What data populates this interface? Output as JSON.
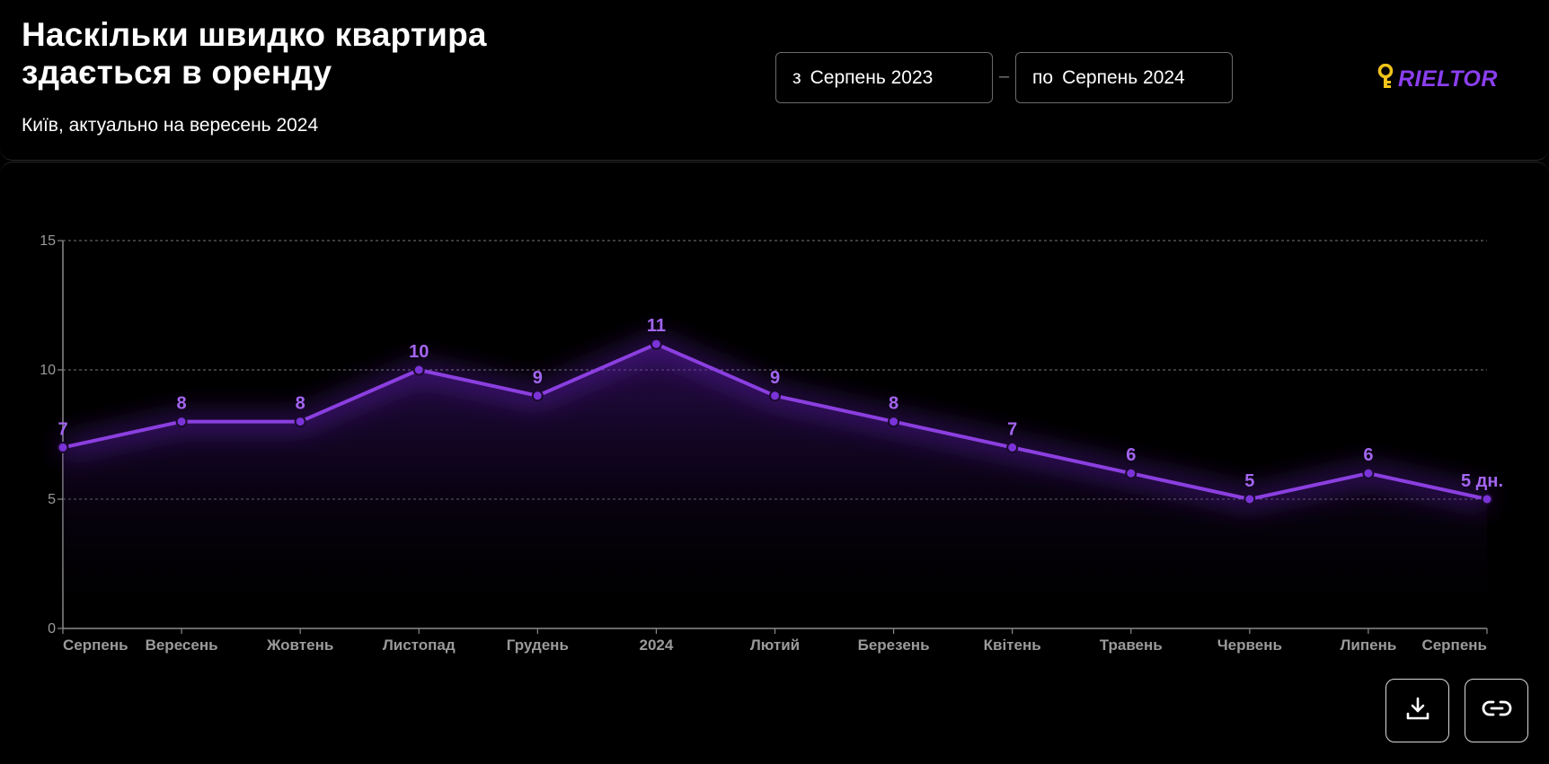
{
  "header": {
    "title": "Наскільки швидко квартира здається в оренду",
    "subtitle": "Київ, актуально на вересень 2024"
  },
  "date_range": {
    "from_prefix": "з",
    "from_value": "Серпень 2023",
    "separator": "–",
    "to_prefix": "по",
    "to_value": "Серпень 2024"
  },
  "logo": {
    "text": "RIELTOR",
    "icon": "key-icon",
    "color": "#8b3ff0"
  },
  "actions": [
    {
      "name": "download-button",
      "icon": "download-icon"
    },
    {
      "name": "copy-link-button",
      "icon": "link-icon"
    }
  ],
  "colors": {
    "line": "#8b3fe0",
    "label": "#a365f0",
    "grid": "#777777",
    "tick": "#9a9a9a"
  },
  "chart_data": {
    "type": "line",
    "categories": [
      "Серпень",
      "Вересень",
      "Жовтень",
      "Листопад",
      "Грудень",
      "2024",
      "Лютий",
      "Березень",
      "Квітень",
      "Травень",
      "Червень",
      "Липень",
      "Серпень"
    ],
    "values": [
      7,
      8,
      8,
      10,
      9,
      11,
      9,
      8,
      7,
      6,
      5,
      6,
      5
    ],
    "data_labels": [
      "7",
      "8",
      "8",
      "10",
      "9",
      "11",
      "9",
      "8",
      "7",
      "6",
      "5",
      "6",
      "5 дн."
    ],
    "ylim": [
      0,
      15
    ],
    "yticks": [
      0,
      5,
      10,
      15
    ],
    "grid": true,
    "area_fill": true,
    "title": "",
    "xlabel": "",
    "ylabel": ""
  }
}
